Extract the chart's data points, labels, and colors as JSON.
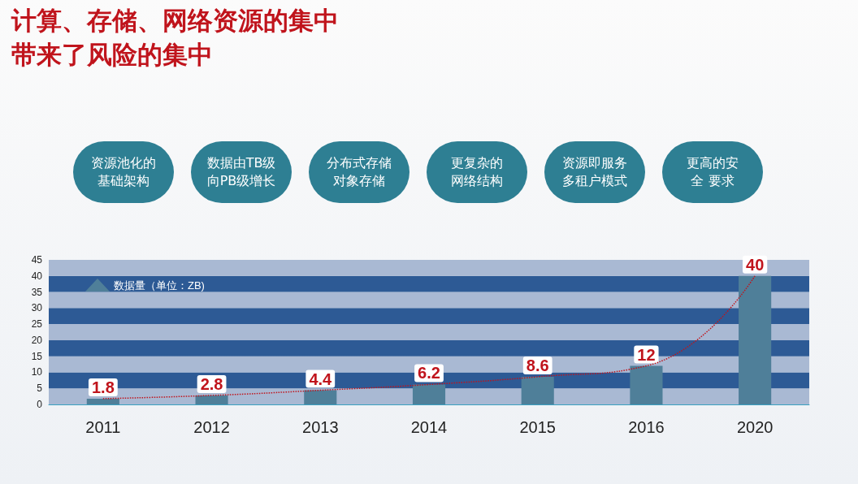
{
  "chart_data": {
    "type": "bar",
    "title": "计算、存储、网络资源的集中带来了风险的集中",
    "annotations": [
      "资源池化的基础架构",
      "数据由TB级向PB级增长",
      "分布式存储对象存储",
      "更复杂的网络结构",
      "资源即服务多租户模式",
      "更高的安全 要求"
    ],
    "categories": [
      "2011",
      "2012",
      "2013",
      "2014",
      "2015",
      "2016",
      "2020"
    ],
    "series": [
      {
        "name": "数据量（单位：ZB)",
        "color": "#4f7f99",
        "values": [
          1.8,
          2.8,
          4.4,
          6.2,
          8.6,
          12,
          40
        ],
        "value_labels": [
          "1.8",
          "2.8",
          "4.4",
          "6.2",
          "8.6",
          "12",
          "40"
        ]
      },
      {
        "type": "line",
        "color": "#c0141c",
        "line_style": "dotted",
        "marker": "none",
        "values": [
          1.8,
          2.8,
          4.4,
          6.2,
          8.6,
          12,
          40
        ]
      }
    ],
    "bands": [
      {
        "axis": "y",
        "from": 0,
        "to": 5,
        "color": "#a9b9d3"
      },
      {
        "axis": "y",
        "from": 5,
        "to": 10,
        "color": "#2d5a95"
      },
      {
        "axis": "y",
        "from": 10,
        "to": 15,
        "color": "#a9b9d3"
      },
      {
        "axis": "y",
        "from": 15,
        "to": 20,
        "color": "#2d5a95"
      },
      {
        "axis": "y",
        "from": 20,
        "to": 25,
        "color": "#a9b9d3"
      },
      {
        "axis": "y",
        "from": 25,
        "to": 30,
        "color": "#2d5a95"
      },
      {
        "axis": "y",
        "from": 30,
        "to": 35,
        "color": "#a9b9d3"
      },
      {
        "axis": "y",
        "from": 35,
        "to": 40,
        "color": "#2d5a95"
      },
      {
        "axis": "y",
        "from": 40,
        "to": 45,
        "color": "#a9b9d3"
      }
    ],
    "ylim": [
      0,
      45
    ],
    "yticks": [
      0,
      5,
      10,
      15,
      20,
      25,
      30,
      35,
      40,
      45
    ],
    "legend": "top left"
  }
}
